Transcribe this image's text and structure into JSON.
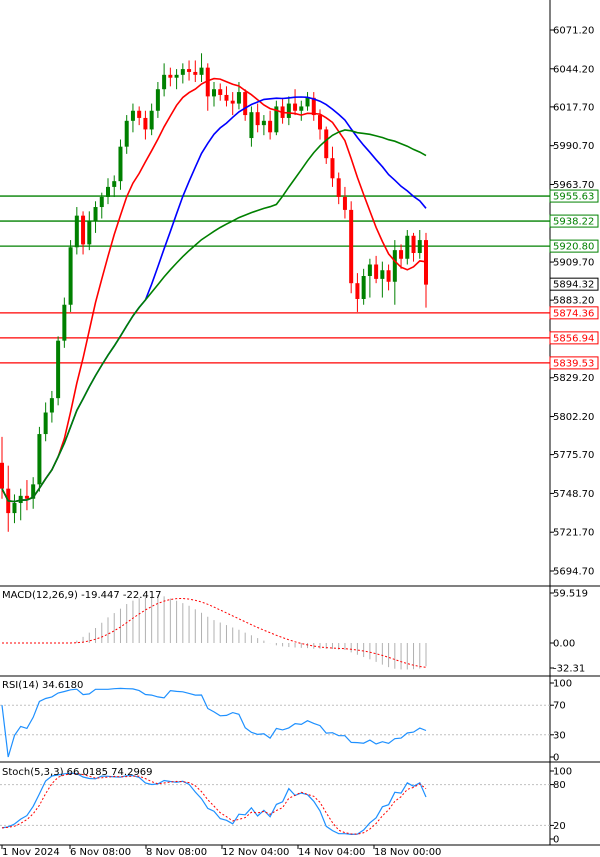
{
  "chart_data": {
    "type": "candlestick",
    "price_panel": {
      "price_ticks": [
        "6071.20",
        "6044.20",
        "6017.70",
        "5990.70",
        "5963.70",
        "5936.70",
        "5909.70",
        "5883.20",
        "5856.20",
        "5829.20",
        "5802.20",
        "5775.70",
        "5748.70",
        "5721.70",
        "5694.70"
      ],
      "current_price": "5894.32",
      "levels": [
        {
          "label": "5955.63",
          "value": 5955.63,
          "color": "#008000"
        },
        {
          "label": "5938.22",
          "value": 5938.22,
          "color": "#008000"
        },
        {
          "label": "5920.80",
          "value": 5920.8,
          "color": "#008000"
        },
        {
          "label": "5874.36",
          "value": 5874.36,
          "color": "#ff0000"
        },
        {
          "label": "5856.94",
          "value": 5856.94,
          "color": "#ff0000"
        },
        {
          "label": "5839.53",
          "value": 5839.53,
          "color": "#ff0000"
        }
      ],
      "candles": [
        [
          5770,
          5788,
          5745,
          5752
        ],
        [
          5752,
          5768,
          5722,
          5735
        ],
        [
          5735,
          5748,
          5728,
          5742
        ],
        [
          5742,
          5752,
          5730,
          5747
        ],
        [
          5747,
          5758,
          5737,
          5745
        ],
        [
          5745,
          5760,
          5738,
          5755
        ],
        [
          5755,
          5795,
          5750,
          5790
        ],
        [
          5790,
          5812,
          5785,
          5805
        ],
        [
          5805,
          5820,
          5798,
          5815
        ],
        [
          5815,
          5858,
          5810,
          5855
        ],
        [
          5855,
          5885,
          5850,
          5880
        ],
        [
          5880,
          5925,
          5875,
          5920
        ],
        [
          5920,
          5948,
          5915,
          5942
        ],
        [
          5942,
          5945,
          5915,
          5922
        ],
        [
          5922,
          5945,
          5918,
          5938
        ],
        [
          5938,
          5952,
          5930,
          5948
        ],
        [
          5948,
          5958,
          5940,
          5955
        ],
        [
          5955,
          5968,
          5950,
          5962
        ],
        [
          5962,
          5970,
          5955,
          5966
        ],
        [
          5966,
          5995,
          5960,
          5990
        ],
        [
          5990,
          6012,
          5985,
          6008
        ],
        [
          6008,
          6020,
          6000,
          6015
        ],
        [
          6015,
          6018,
          6005,
          6010
        ],
        [
          6010,
          6015,
          5995,
          6002
        ],
        [
          6002,
          6020,
          5998,
          6015
        ],
        [
          6015,
          6035,
          6010,
          6030
        ],
        [
          6030,
          6048,
          6025,
          6040
        ],
        [
          6040,
          6045,
          6032,
          6038
        ],
        [
          6038,
          6044,
          6030,
          6040
        ],
        [
          6040,
          6048,
          6034,
          6044
        ],
        [
          6044,
          6050,
          6036,
          6042
        ],
        [
          6042,
          6050,
          6035,
          6040
        ],
        [
          6040,
          6055,
          6035,
          6045
        ],
        [
          6045,
          6048,
          6015,
          6025
        ],
        [
          6025,
          6035,
          6018,
          6030
        ],
        [
          6030,
          6034,
          6022,
          6026
        ],
        [
          6026,
          6032,
          6018,
          6022
        ],
        [
          6022,
          6028,
          6012,
          6020
        ],
        [
          6020,
          6035,
          6016,
          6028
        ],
        [
          6028,
          6030,
          6008,
          6012
        ],
        [
          5996,
          6018,
          5990,
          6014
        ],
        [
          6014,
          6020,
          6000,
          6005
        ],
        [
          6005,
          6012,
          5998,
          6008
        ],
        [
          6008,
          6015,
          5995,
          6000
        ],
        [
          6000,
          6022,
          5998,
          6018
        ],
        [
          6018,
          6024,
          6006,
          6010
        ],
        [
          6010,
          6025,
          6005,
          6020
        ],
        [
          6020,
          6030,
          6012,
          6015
        ],
        [
          6015,
          6022,
          6008,
          6018
        ],
        [
          6018,
          6028,
          6015,
          6024
        ],
        [
          6024,
          6028,
          6008,
          6012
        ],
        [
          6012,
          6016,
          5995,
          6002
        ],
        [
          6002,
          6004,
          5978,
          5982
        ],
        [
          5982,
          5990,
          5962,
          5968
        ],
        [
          5968,
          5972,
          5950,
          5955
        ],
        [
          5955,
          5962,
          5940,
          5946
        ],
        [
          5946,
          5952,
          5888,
          5895
        ],
        [
          5895,
          5902,
          5875,
          5884
        ],
        [
          5884,
          5905,
          5880,
          5900
        ],
        [
          5900,
          5912,
          5885,
          5908
        ],
        [
          5908,
          5914,
          5895,
          5898
        ],
        [
          5898,
          5910,
          5885,
          5904
        ],
        [
          5904,
          5908,
          5890,
          5896
        ],
        [
          5896,
          5925,
          5880,
          5918
        ],
        [
          5918,
          5922,
          5905,
          5912
        ],
        [
          5912,
          5932,
          5908,
          5928
        ],
        [
          5928,
          5930,
          5910,
          5916
        ],
        [
          5916,
          5932,
          5912,
          5925
        ],
        [
          5925,
          5930,
          5878,
          5894
        ]
      ],
      "ma_fast_color": "#ff0000",
      "ma_mid_color": "#0000ff",
      "ma_slow_color": "#008000"
    },
    "macd": {
      "label": "MACD(12,26,9) -19.447 -22.417",
      "ticks": [
        "59.519",
        "0.00",
        "-32.31"
      ]
    },
    "rsi": {
      "label": "RSI(14) 34.6180",
      "ticks": [
        "100",
        "70",
        "30",
        "0"
      ]
    },
    "stoch": {
      "label": "Stoch(5,3,3) 66.0185 74.2969",
      "ticks": [
        "100",
        "80",
        "20",
        "0"
      ]
    },
    "time_labels": [
      "1 Nov 2024",
      "6 Nov 08:00",
      "8 Nov 08:00",
      "12 Nov 04:00",
      "14 Nov 04:00",
      "18 Nov 00:00"
    ]
  }
}
